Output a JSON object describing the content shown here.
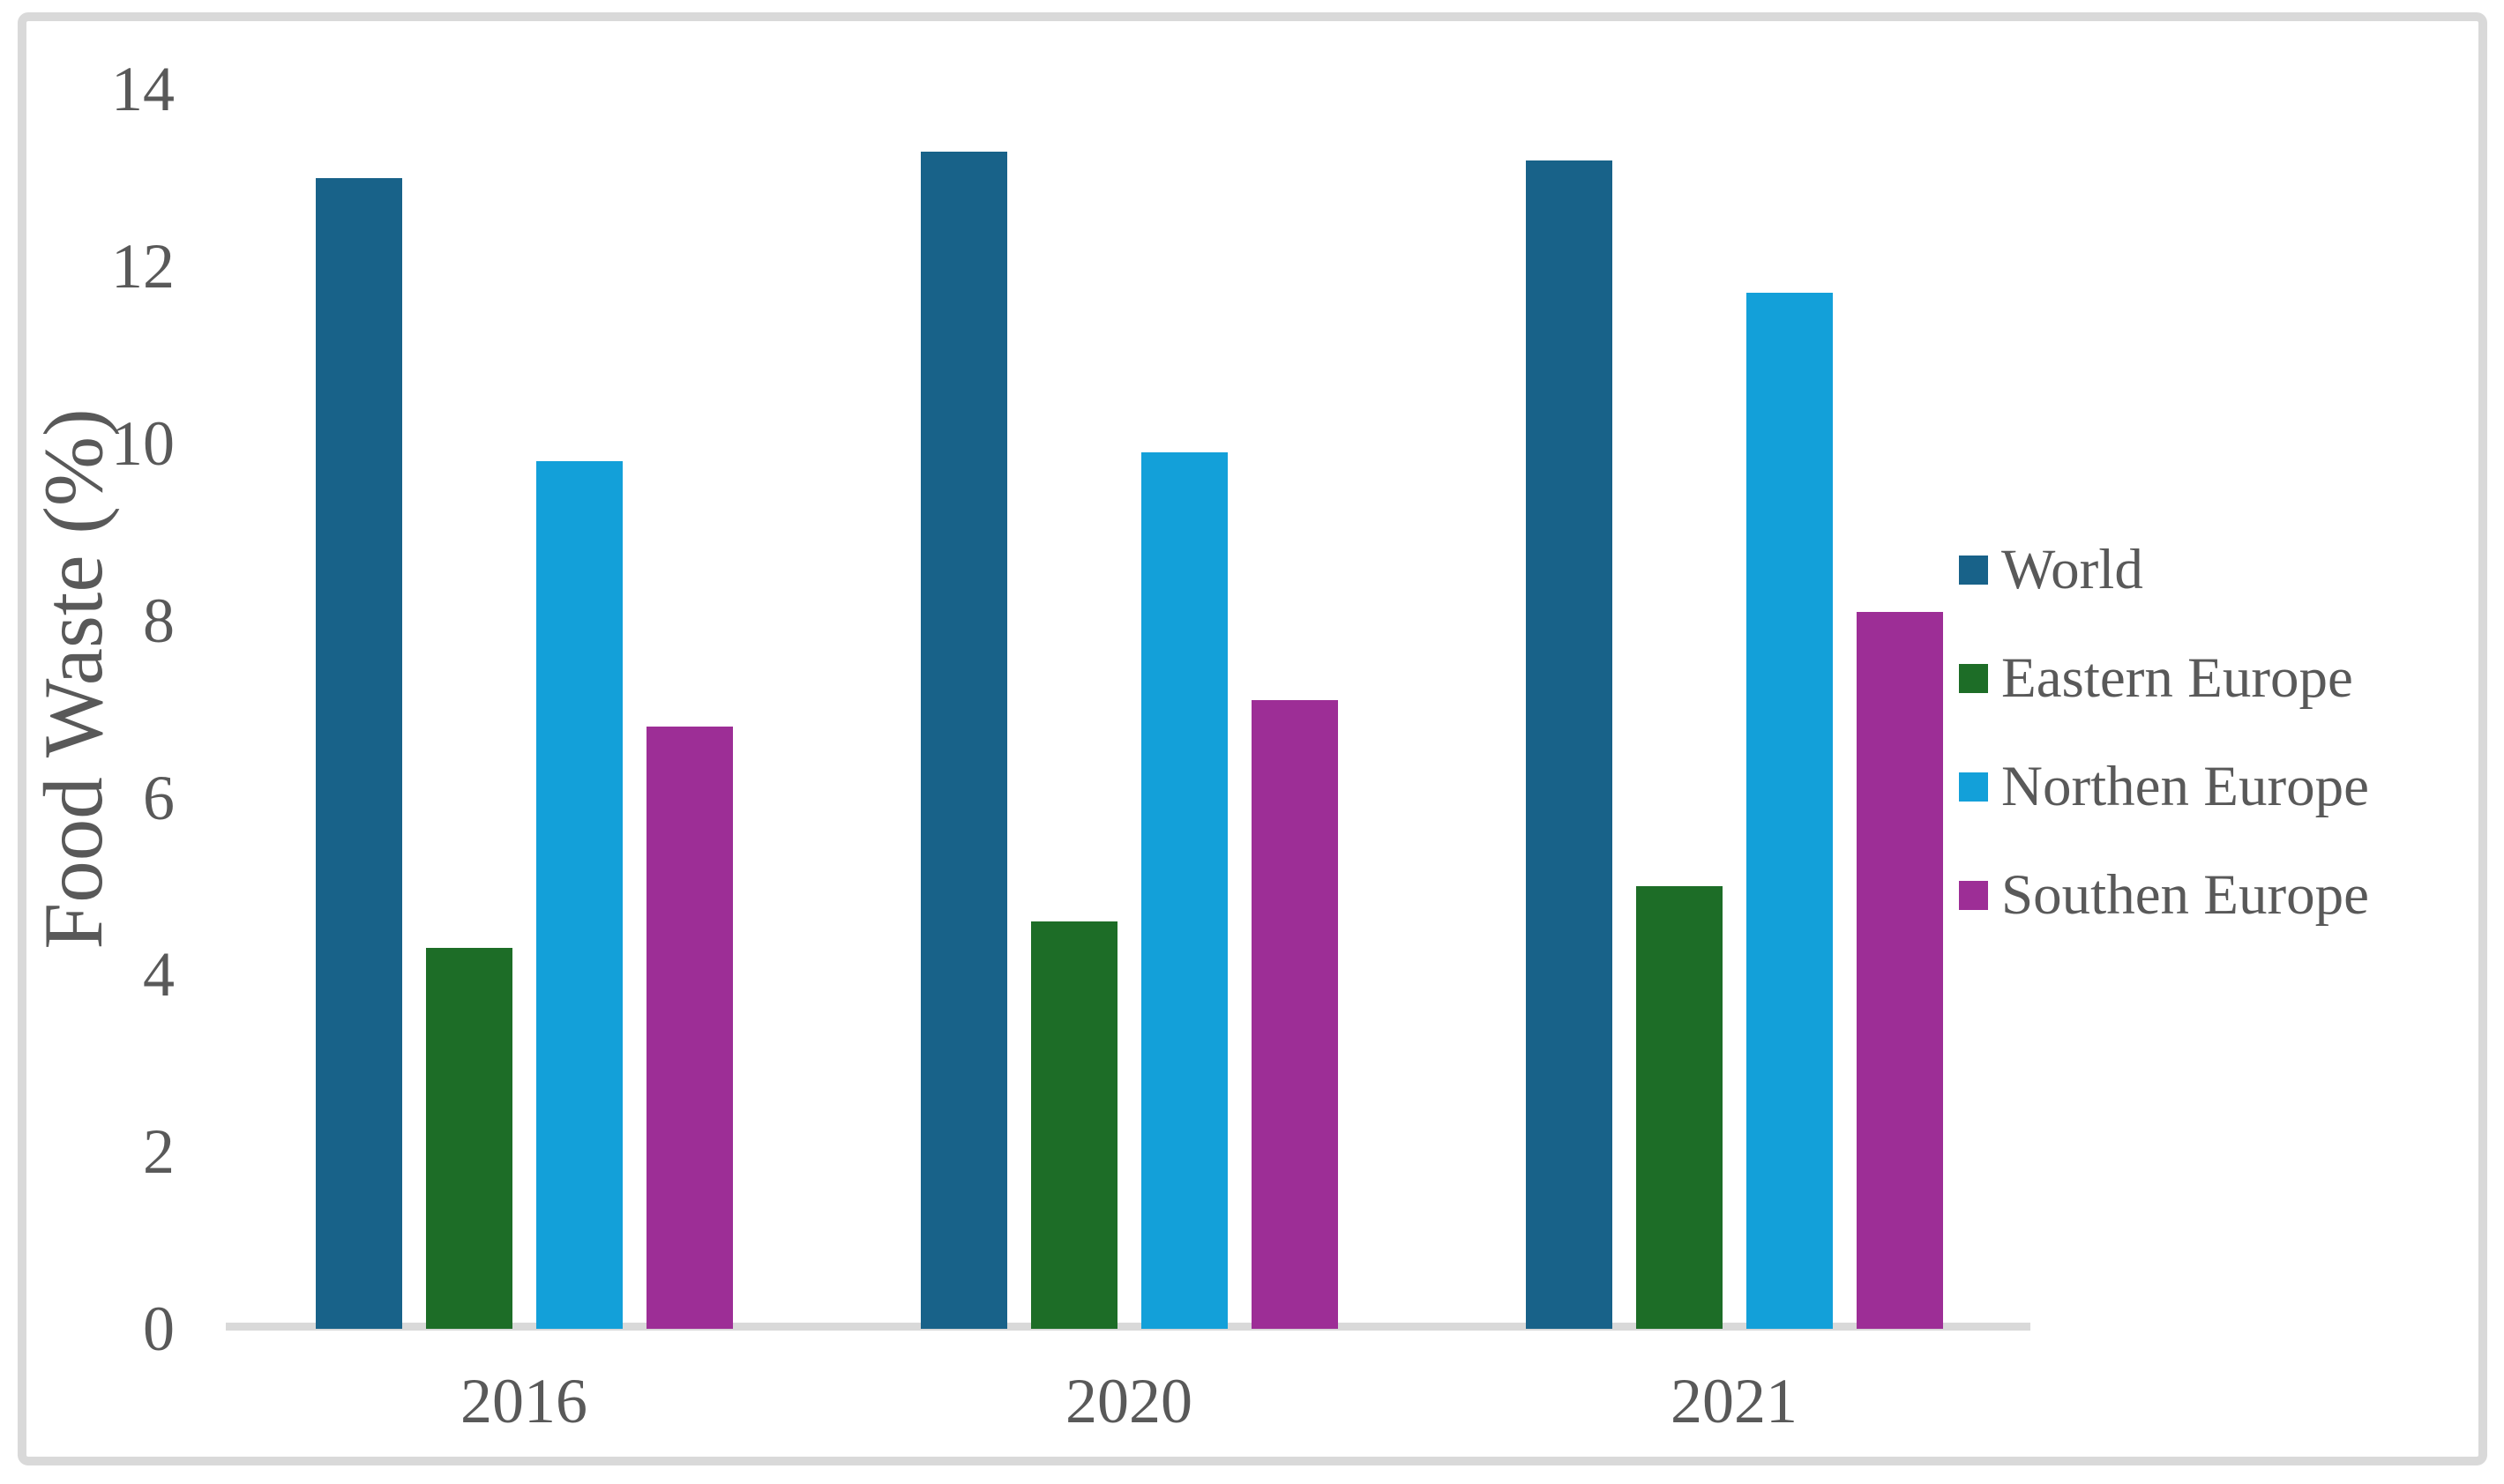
{
  "chart_data": {
    "type": "bar",
    "title": "",
    "ylabel": "Food Waste (%)",
    "xlabel": "",
    "categories": [
      "2016",
      "2020",
      "2021"
    ],
    "series": [
      {
        "name": "World",
        "color": "#186289",
        "values": [
          13.0,
          13.3,
          13.2
        ]
      },
      {
        "name": "Eastern Europe",
        "color": "#1D6D27",
        "values": [
          4.3,
          4.6,
          5.0
        ]
      },
      {
        "name": "Northen Europe",
        "color": "#13A0D9",
        "values": [
          9.8,
          9.9,
          11.7
        ]
      },
      {
        "name": "Southen Europe",
        "color": "#9D2E96",
        "values": [
          6.8,
          7.1,
          8.1
        ]
      }
    ],
    "ylim": [
      0,
      14
    ],
    "yticks": [
      0,
      2,
      4,
      6,
      8,
      10,
      12,
      14
    ],
    "grid": false,
    "legend_position": "right"
  },
  "styles": {
    "text_color": "#595959",
    "frame_color": "#D9D9D9",
    "axis_line_color": "#D9D9D9",
    "background": "#FFFFFF"
  }
}
